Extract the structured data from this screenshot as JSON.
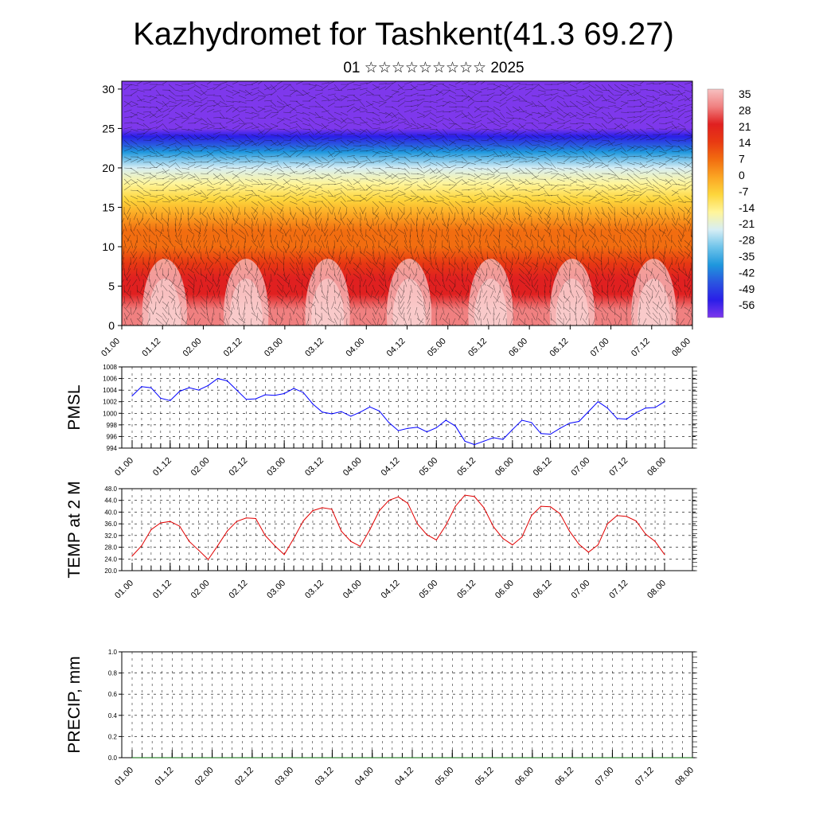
{
  "page": {
    "title": "Kazhydromet for Tashkent(41.3 69.27)",
    "subtitle": "01 ☆☆☆☆☆☆☆☆☆ 2025"
  },
  "time_ticks": [
    "01.00",
    "01.12",
    "02.00",
    "02.12",
    "03.00",
    "03.12",
    "04.00",
    "04.12",
    "05.00",
    "05.12",
    "06.00",
    "06.12",
    "07.00",
    "07.12",
    "08.00"
  ],
  "chart_data": [
    {
      "type": "heatmap",
      "title": "Kazhydromet for Tashkent(41.3 69.27)",
      "xlabel": "",
      "ylabel": "",
      "x_tick_labels": [
        "01.00",
        "01.12",
        "02.00",
        "02.12",
        "03.00",
        "03.12",
        "04.00",
        "04.12",
        "05.00",
        "05.12",
        "06.00",
        "06.12",
        "07.00",
        "07.12",
        "08.00"
      ],
      "y_tick_labels": [
        "0",
        "5",
        "10",
        "15",
        "20",
        "25",
        "30"
      ],
      "ylim": [
        0,
        31
      ],
      "overlay": "wind barbs",
      "colorbar": {
        "labels": [
          "35",
          "28",
          "21",
          "14",
          "7",
          "0",
          "-7",
          "-14",
          "-21",
          "-28",
          "-35",
          "-42",
          "-49",
          "-56"
        ],
        "colors": [
          "#f7c0c0",
          "#f08080",
          "#e02020",
          "#e83a12",
          "#f26d10",
          "#fba523",
          "#fdd63c",
          "#fff59a",
          "#d6eef5",
          "#6ec3ea",
          "#1e97dd",
          "#2a55e0",
          "#2a1ee8",
          "#7e38ec"
        ]
      },
      "temperature_profile": {
        "heights": [
          0,
          2,
          4,
          6,
          8,
          10,
          12,
          14,
          16,
          18,
          20,
          22,
          23,
          24,
          25,
          26,
          28,
          31
        ],
        "temperatures": [
          30,
          26,
          22,
          18,
          14,
          10,
          5,
          -2,
          -9,
          -17,
          -24,
          -33,
          -40,
          -50,
          -56,
          -60,
          -62,
          -64
        ]
      }
    },
    {
      "type": "line",
      "ylabel": "PMSL",
      "ylim": [
        994,
        1008
      ],
      "y_tick_labels": [
        "994",
        "996",
        "998",
        "1000",
        "1002",
        "1004",
        "1006",
        "1008"
      ],
      "x_tick_labels": [
        "01.00",
        "01.12",
        "02.00",
        "02.12",
        "03.00",
        "03.12",
        "04.00",
        "04.12",
        "05.00",
        "05.12",
        "06.00",
        "06.12",
        "07.00",
        "07.12",
        "08.00"
      ],
      "line_color": "#0000ff",
      "series": [
        {
          "values": [
            1003.0,
            1004.6,
            1004.4,
            1002.6,
            1002.2,
            1003.8,
            1004.4,
            1004.0,
            1004.8,
            1006.0,
            1005.6,
            1004.0,
            1002.4,
            1002.5,
            1003.2,
            1003.1,
            1003.4,
            1004.3,
            1003.6,
            1001.6,
            1000.2,
            999.9,
            1000.3,
            999.5,
            1000.2,
            1001.1,
            1000.4,
            998.4,
            997.0,
            997.4,
            997.6,
            996.8,
            997.5,
            998.8,
            997.8,
            995.2,
            994.6,
            995.2,
            995.8,
            995.5,
            997.2,
            998.8,
            998.4,
            996.5,
            996.4,
            997.4,
            998.3,
            998.6,
            1000.3,
            1002.0,
            1000.9,
            999.1,
            999.0,
            1000.1,
            1000.9,
            1001.0,
            1002.0
          ]
        }
      ]
    },
    {
      "type": "line",
      "ylabel": "TEMP at 2 M",
      "ylim": [
        20.0,
        48.0
      ],
      "y_tick_labels": [
        "20.0",
        "24.0",
        "28.0",
        "32.0",
        "36.0",
        "40.0",
        "44.0",
        "48.0"
      ],
      "x_tick_labels": [
        "01.00",
        "01.12",
        "02.00",
        "02.12",
        "03.00",
        "03.12",
        "04.00",
        "04.12",
        "05.00",
        "05.12",
        "06.00",
        "06.12",
        "07.00",
        "07.12",
        "08.00"
      ],
      "line_color": "#e00000",
      "series": [
        {
          "values": [
            25.0,
            28.5,
            34.0,
            36.3,
            36.8,
            35.2,
            30.0,
            27.0,
            23.8,
            28.5,
            33.5,
            36.8,
            38.0,
            37.8,
            32.0,
            28.5,
            25.5,
            31.0,
            37.0,
            40.5,
            41.5,
            41.0,
            33.5,
            30.0,
            28.3,
            34.0,
            40.5,
            44.0,
            45.2,
            43.0,
            36.0,
            32.3,
            30.5,
            35.5,
            42.0,
            45.8,
            45.3,
            41.5,
            35.0,
            31.0,
            28.8,
            31.5,
            38.8,
            42.0,
            41.8,
            39.5,
            33.5,
            29.0,
            26.3,
            28.8,
            36.0,
            38.8,
            38.5,
            37.0,
            32.5,
            30.0,
            25.5
          ]
        }
      ]
    },
    {
      "type": "line",
      "ylabel": "PRECIP, mm",
      "ylim": [
        0.0,
        1.0
      ],
      "y_tick_labels": [
        "0.0",
        "0.2",
        "0.4",
        "0.6",
        "0.8",
        "1.0"
      ],
      "x_tick_labels": [
        "01.00",
        "01.12",
        "02.00",
        "02.12",
        "03.00",
        "03.12",
        "04.00",
        "04.12",
        "05.00",
        "05.12",
        "06.00",
        "06.12",
        "07.00",
        "07.12",
        "08.00"
      ],
      "line_color": "#006400",
      "series": [
        {
          "values": [
            0,
            0,
            0,
            0,
            0,
            0,
            0,
            0,
            0,
            0,
            0,
            0,
            0,
            0,
            0,
            0,
            0,
            0,
            0,
            0,
            0,
            0,
            0,
            0,
            0,
            0,
            0,
            0,
            0,
            0,
            0,
            0,
            0,
            0,
            0,
            0,
            0,
            0,
            0,
            0,
            0,
            0,
            0,
            0,
            0,
            0,
            0,
            0,
            0,
            0,
            0,
            0,
            0,
            0,
            0,
            0,
            0
          ]
        }
      ]
    }
  ]
}
